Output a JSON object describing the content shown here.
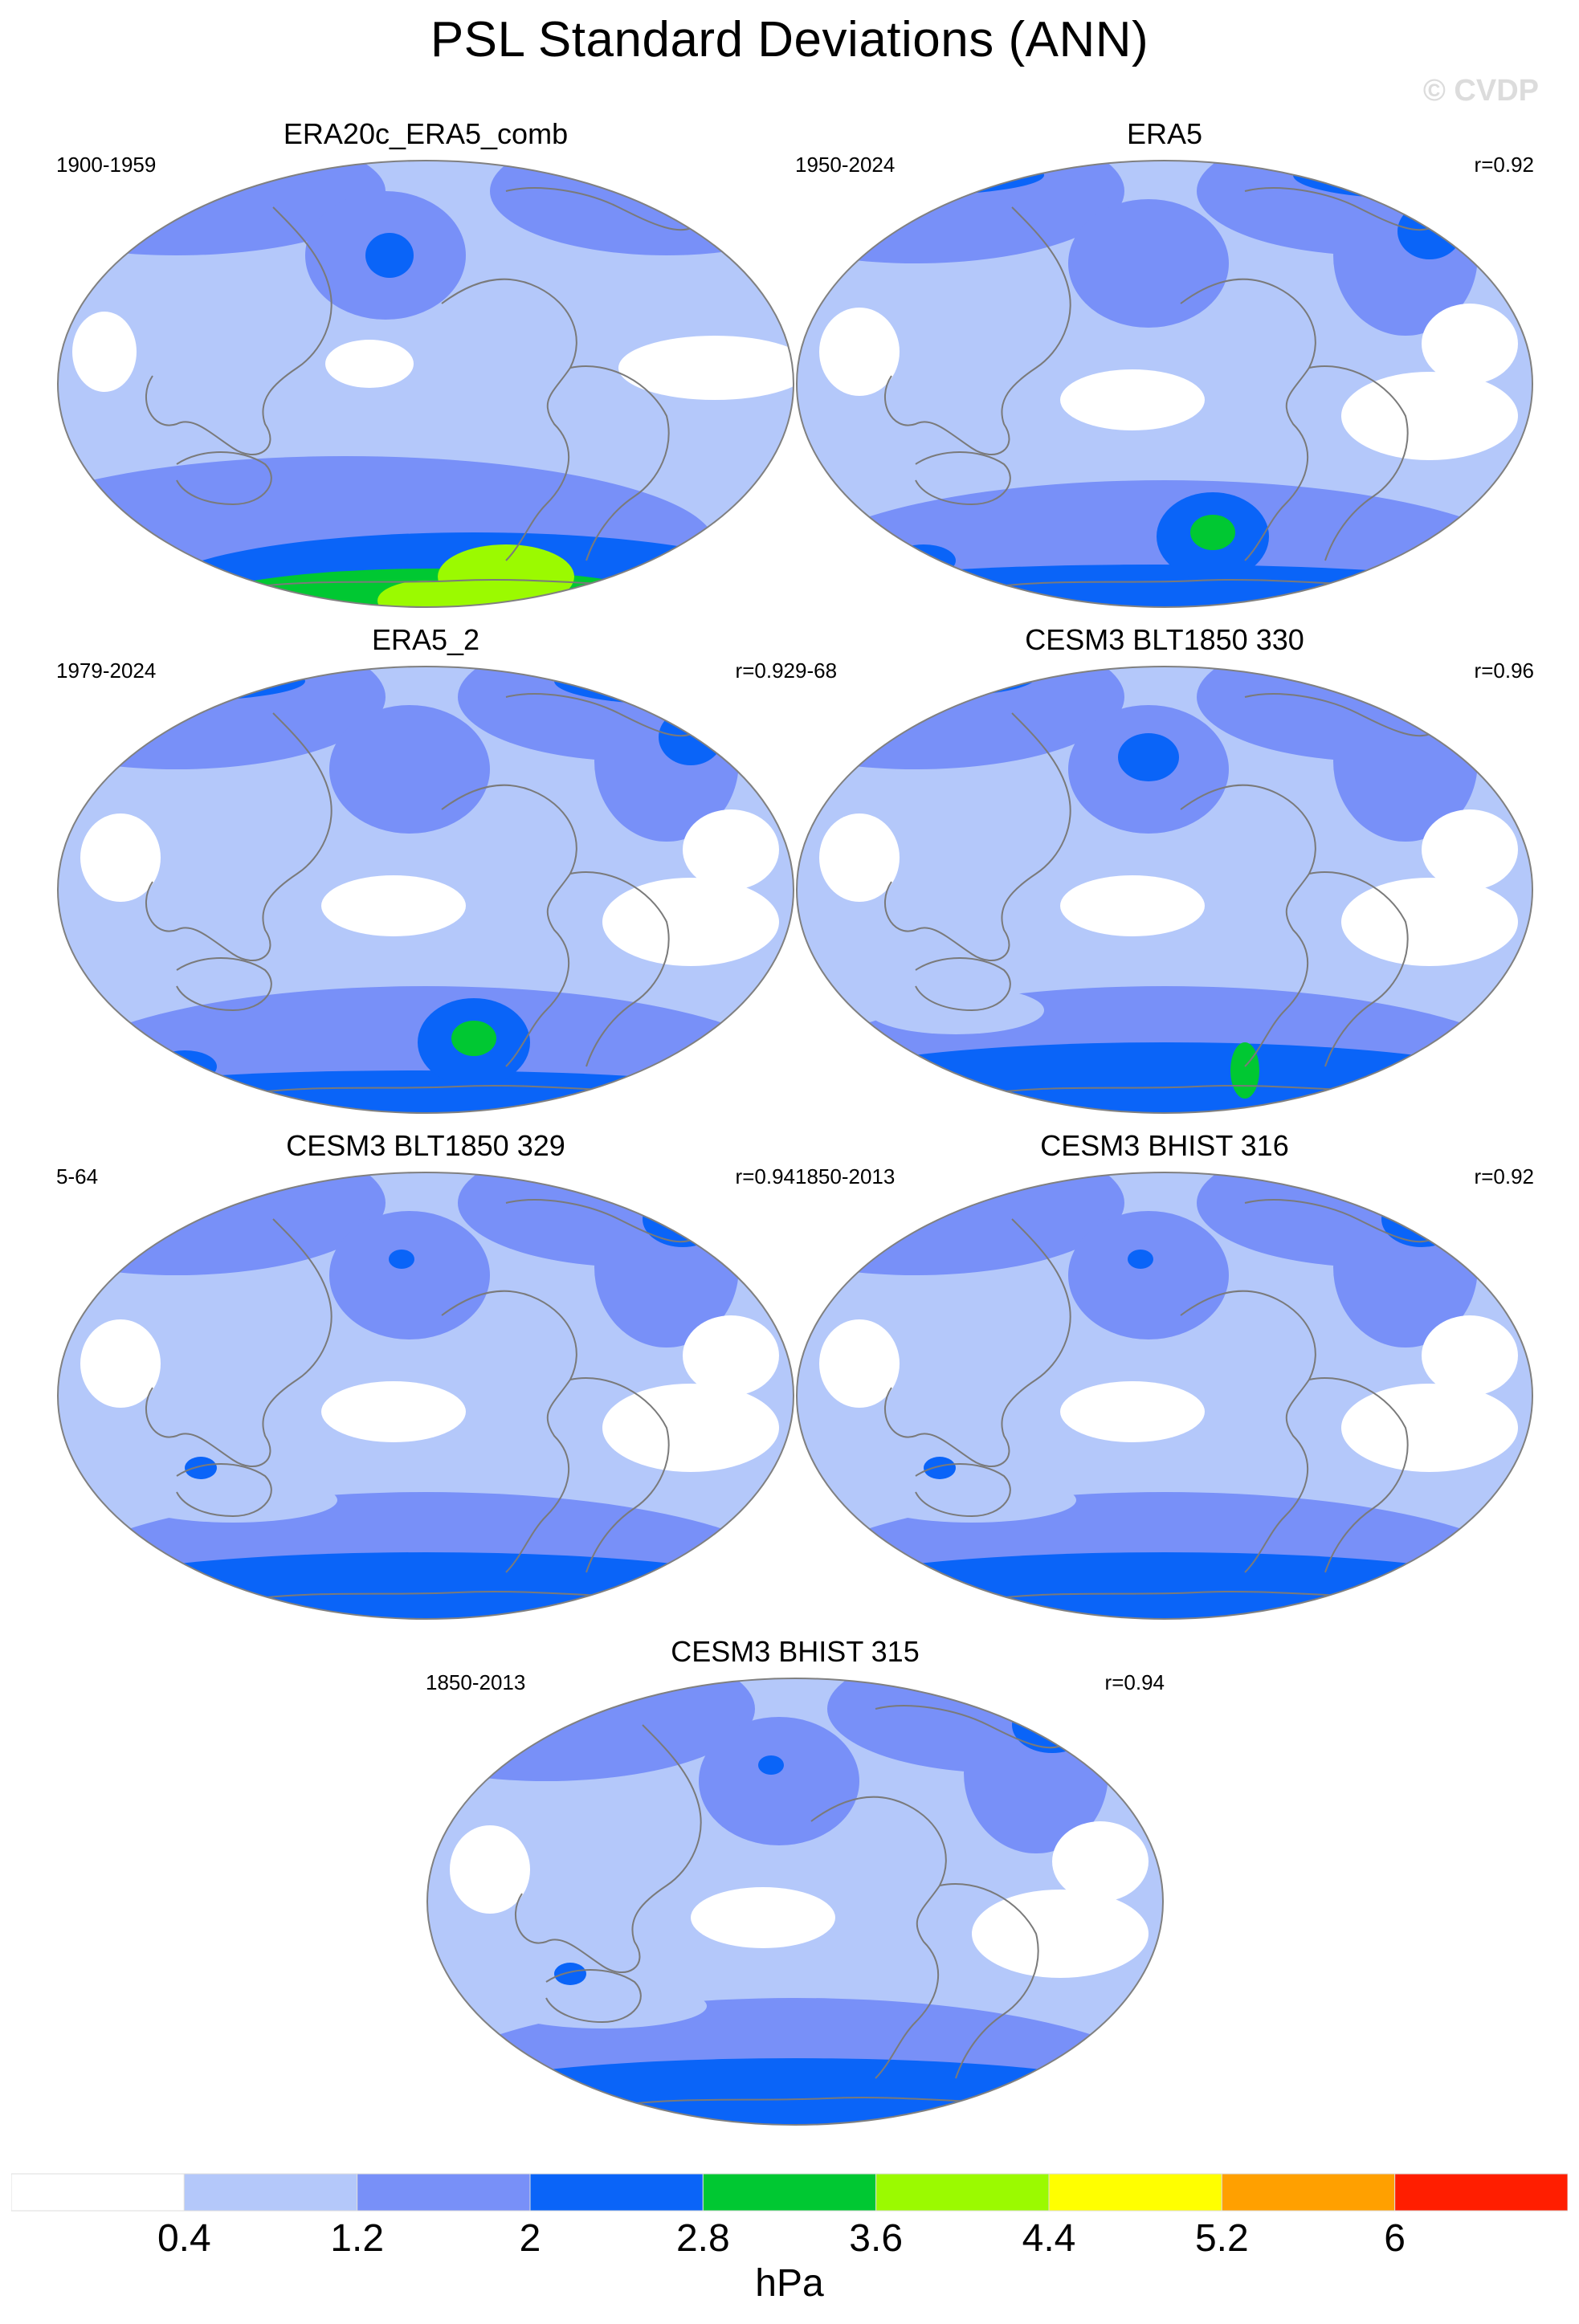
{
  "title": "PSL Standard Deviations (ANN)",
  "watermark": "© CVDP",
  "panels": [
    {
      "title": "ERA20c_ERA5_comb",
      "period": "1900-1959",
      "corr": "",
      "pattern": "era20c"
    },
    {
      "title": "ERA5",
      "period": "1950-2024",
      "corr": "r=0.92",
      "pattern": "era5"
    },
    {
      "title": "ERA5_2",
      "period": "1979-2024",
      "corr": "r=0.92",
      "pattern": "era5"
    },
    {
      "title": "CESM3 BLT1850 330",
      "period": "9-68",
      "corr": "r=0.96",
      "pattern": "blt330"
    },
    {
      "title": "CESM3 BLT1850 329",
      "period": "5-64",
      "corr": "r=0.94",
      "pattern": "model"
    },
    {
      "title": "CESM3 BHIST 316",
      "period": "1850-2013",
      "corr": "r=0.92",
      "pattern": "model"
    },
    {
      "title": "CESM3 BHIST 315",
      "period": "1850-2013",
      "corr": "r=0.94",
      "pattern": "model"
    }
  ],
  "colorbar": {
    "levels": [
      "0.4",
      "1.2",
      "2",
      "2.8",
      "3.6",
      "4.4",
      "5.2",
      "6"
    ],
    "colors": [
      "#ffffff",
      "#b4c8fa",
      "#7890f8",
      "#0a64f8",
      "#00c832",
      "#9bfa00",
      "#ffff00",
      "#ffa000",
      "#ff1e00"
    ],
    "units": "hPa"
  }
}
